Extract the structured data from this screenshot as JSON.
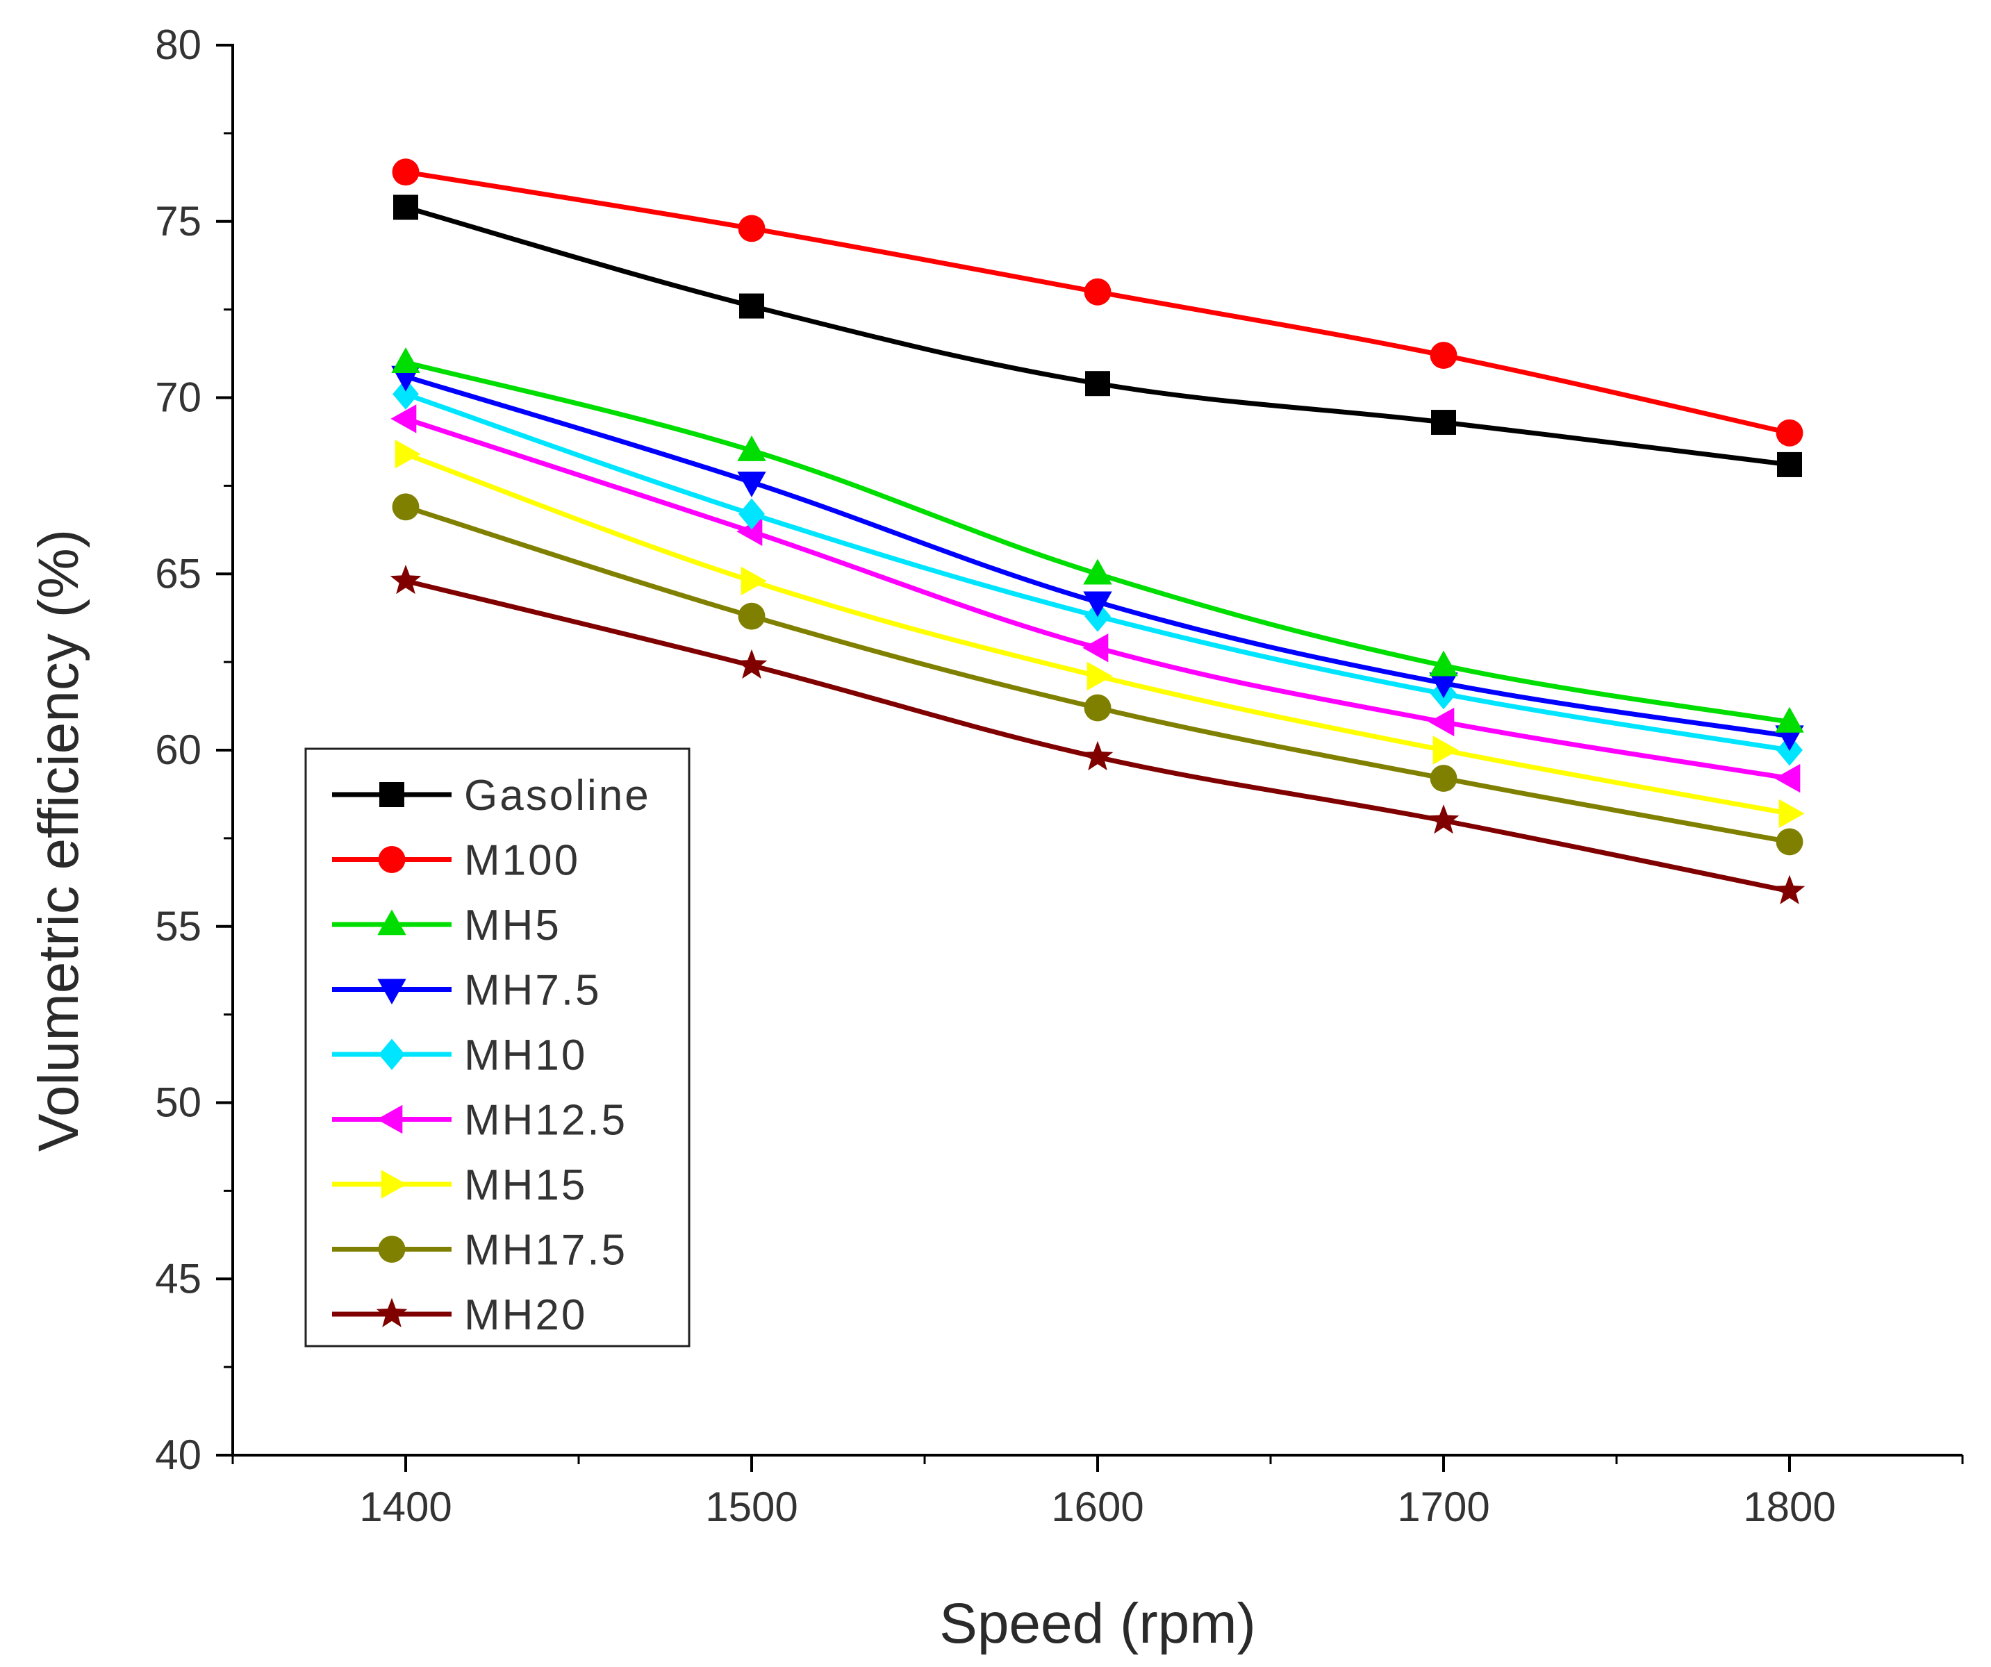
{
  "chart_data": {
    "type": "line",
    "title": "",
    "xlabel": "Speed (rpm)",
    "ylabel": "Volumetric efficiency (%)",
    "x": [
      1400,
      1500,
      1600,
      1700,
      1800
    ],
    "xticks": [
      1400,
      1500,
      1600,
      1700,
      1800
    ],
    "yticks": [
      40,
      45,
      50,
      55,
      60,
      65,
      70,
      75,
      80
    ],
    "xlim": [
      1350,
      1850
    ],
    "ylim": [
      40,
      80
    ],
    "grid": false,
    "legend_position": "bottom-left",
    "series": [
      {
        "name": "Gasoline",
        "color": "#000000",
        "marker": "square",
        "values": [
          75.4,
          72.6,
          70.4,
          69.3,
          68.1
        ]
      },
      {
        "name": "M100",
        "color": "#ff0000",
        "marker": "circle",
        "values": [
          76.4,
          74.8,
          73.0,
          71.2,
          69.0
        ]
      },
      {
        "name": "MH5",
        "color": "#00dd00",
        "marker": "triangle-up",
        "values": [
          71.0,
          68.5,
          65.0,
          62.4,
          60.8
        ]
      },
      {
        "name": "MH7.5",
        "color": "#0000ff",
        "marker": "triangle-down",
        "values": [
          70.6,
          67.6,
          64.2,
          61.9,
          60.4
        ]
      },
      {
        "name": "MH10",
        "color": "#00e5ff",
        "marker": "diamond",
        "values": [
          70.1,
          66.7,
          63.8,
          61.6,
          60.0
        ]
      },
      {
        "name": "MH12.5",
        "color": "#ff00ff",
        "marker": "triangle-left",
        "values": [
          69.4,
          66.2,
          62.9,
          60.8,
          59.2
        ]
      },
      {
        "name": "MH15",
        "color": "#ffff00",
        "marker": "triangle-right",
        "values": [
          68.4,
          64.8,
          62.1,
          60.0,
          58.2
        ]
      },
      {
        "name": "MH17.5",
        "color": "#808000",
        "marker": "circle",
        "values": [
          66.9,
          63.8,
          61.2,
          59.2,
          57.4
        ]
      },
      {
        "name": "MH20",
        "color": "#800000",
        "marker": "star",
        "values": [
          64.8,
          62.4,
          59.8,
          58.0,
          56.0
        ]
      }
    ]
  }
}
